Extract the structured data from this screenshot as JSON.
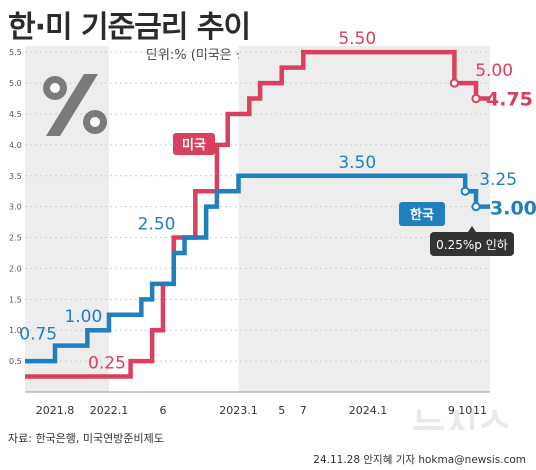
{
  "header": {
    "title": "한·미 기준금리 추이",
    "unit": "단위:% (미국은 상단기준)"
  },
  "footer": {
    "source": "자료: 한국은행, 미국연방준비제도",
    "credit": "24.11.28 안지혜 기자 hokma@newsis.com",
    "watermark": "뉴시스"
  },
  "colors": {
    "us": "#d9405e",
    "kr": "#1f7fbf",
    "band": "#ededed",
    "grid": "#cfcfcf"
  },
  "chart_data": {
    "type": "line",
    "title": "한·미 기준금리 추이",
    "ylabel": "단위:% (미국은 상단기준)",
    "ylim": [
      0,
      5.6
    ],
    "yticks": [
      0.5,
      1.0,
      1.5,
      2.0,
      2.5,
      3.0,
      3.5,
      4.0,
      4.5,
      5.0,
      5.5
    ],
    "x_tick_labels": [
      {
        "x": "2021.8",
        "label": "2021.8"
      },
      {
        "x": "2022.1",
        "label": "2022.1"
      },
      {
        "x": "2022.6",
        "label": "6"
      },
      {
        "x": "2023.1",
        "label": "2023.1"
      },
      {
        "x": "2023.5",
        "label": "5"
      },
      {
        "x": "2023.7",
        "label": "7"
      },
      {
        "x": "2024.1",
        "label": "2024.1"
      },
      {
        "x": "2024.9",
        "label": "9"
      },
      {
        "x": "2024.10",
        "label": "10"
      },
      {
        "x": "2024.11",
        "label": "11"
      }
    ],
    "series": [
      {
        "name": "미국",
        "color": "#d9405e",
        "points": [
          {
            "x": "2021.6",
            "y": 0.25
          },
          {
            "x": "2022.3",
            "y": 0.5
          },
          {
            "x": "2022.5",
            "y": 1.0
          },
          {
            "x": "2022.6",
            "y": 1.75
          },
          {
            "x": "2022.7",
            "y": 2.5
          },
          {
            "x": "2022.9",
            "y": 3.25
          },
          {
            "x": "2022.11",
            "y": 4.0
          },
          {
            "x": "2022.12",
            "y": 4.5
          },
          {
            "x": "2023.2",
            "y": 4.75
          },
          {
            "x": "2023.3",
            "y": 5.0
          },
          {
            "x": "2023.5",
            "y": 5.25
          },
          {
            "x": "2023.7",
            "y": 5.5
          },
          {
            "x": "2024.9",
            "y": 5.0
          },
          {
            "x": "2024.11",
            "y": 4.75
          }
        ],
        "labels": [
          {
            "x": "2022.1",
            "y": 0.25,
            "text": "0.25"
          },
          {
            "x": "2023.12",
            "y": 5.5,
            "text": "5.50"
          },
          {
            "x": "2024.10",
            "y": 5.0,
            "text": "5.00"
          },
          {
            "x": "2024.11",
            "y": 4.75,
            "text": "4.75"
          }
        ]
      },
      {
        "name": "한국",
        "color": "#1f7fbf",
        "points": [
          {
            "x": "2021.6",
            "y": 0.5
          },
          {
            "x": "2021.8",
            "y": 0.75
          },
          {
            "x": "2021.11",
            "y": 1.0
          },
          {
            "x": "2022.1",
            "y": 1.25
          },
          {
            "x": "2022.4",
            "y": 1.5
          },
          {
            "x": "2022.5",
            "y": 1.75
          },
          {
            "x": "2022.7",
            "y": 2.25
          },
          {
            "x": "2022.8",
            "y": 2.5
          },
          {
            "x": "2022.10",
            "y": 3.0
          },
          {
            "x": "2022.11",
            "y": 3.25
          },
          {
            "x": "2023.1",
            "y": 3.5
          },
          {
            "x": "2024.10",
            "y": 3.25
          },
          {
            "x": "2024.11",
            "y": 3.0
          }
        ],
        "labels": [
          {
            "x": "2021.7",
            "y": 0.75,
            "text": "0.75"
          },
          {
            "x": "2021.11",
            "y": 1.0,
            "text": "1.00"
          },
          {
            "x": "2022.8",
            "y": 2.5,
            "text": "2.50"
          },
          {
            "x": "2023.12",
            "y": 3.5,
            "text": "3.50"
          },
          {
            "x": "2024.10",
            "y": 3.25,
            "text": "3.25"
          },
          {
            "x": "2024.11",
            "y": 3.0,
            "text": "3.00"
          }
        ]
      }
    ],
    "annotation": "0.25%p 인하",
    "grid": true,
    "legend": "inline"
  }
}
